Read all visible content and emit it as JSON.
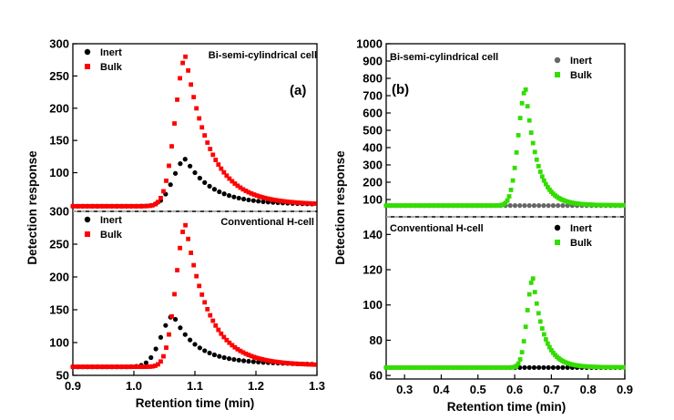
{
  "figure": {
    "ylabel_left": "Detection response",
    "ylabel_right": "Detection response",
    "xlabel_left": "Retention time (min)",
    "xlabel_right": "Retention time (min)"
  },
  "chart_data": [
    {
      "id": "a_top",
      "type": "scatter",
      "panel_label": "(a)",
      "annotation": "Bi-semi-cylindrical cell",
      "xlim": [
        0.9,
        1.3
      ],
      "ylim": [
        40,
        300
      ],
      "yticks": [
        100,
        150,
        200,
        250,
        300
      ],
      "legend": [
        "Inert",
        "Bulk"
      ],
      "series": [
        {
          "name": "Inert",
          "color": "#000000",
          "marker": "circle",
          "baseline": 48,
          "peak_x": 1.085,
          "peak_y": 121,
          "tail": 0.1,
          "sigma_left": 0.02,
          "tau_right": 0.04,
          "x_start": 0.9,
          "x_end": 1.3,
          "step": 0.008
        },
        {
          "name": "Bulk",
          "color": "#ff0000",
          "marker": "square",
          "baseline": 48,
          "peak_x": 1.085,
          "peak_y": 280,
          "tail": 0.03,
          "sigma_left": 0.017,
          "tau_right": 0.04,
          "x_start": 0.9,
          "x_end": 1.3,
          "step": 0.0045
        }
      ]
    },
    {
      "id": "a_bottom",
      "type": "scatter",
      "annotation": "Conventional H-cell",
      "xlim": [
        0.9,
        1.3
      ],
      "ylim": [
        50,
        300
      ],
      "yticks": [
        50,
        100,
        150,
        200,
        250,
        300
      ],
      "xticks": [
        0.9,
        1.0,
        1.1,
        1.2,
        1.3
      ],
      "legend": [
        "Inert",
        "Bulk"
      ],
      "series": [
        {
          "name": "Inert",
          "color": "#000000",
          "marker": "circle",
          "baseline": 63,
          "peak_x": 1.065,
          "peak_y": 141,
          "tail": 0.15,
          "sigma_left": 0.02,
          "tau_right": 0.035,
          "x_start": 0.9,
          "x_end": 1.3,
          "step": 0.008
        },
        {
          "name": "Bulk",
          "color": "#ff0000",
          "marker": "square",
          "baseline": 63,
          "peak_x": 1.085,
          "peak_y": 279,
          "tail": 0.03,
          "sigma_left": 0.016,
          "tau_right": 0.038,
          "x_start": 0.9,
          "x_end": 1.3,
          "step": 0.0045
        }
      ]
    },
    {
      "id": "b_top",
      "type": "scatter",
      "panel_label": "(b)",
      "annotation": "Bi-semi-cylindrical  cell",
      "xlim": [
        0.25,
        0.9
      ],
      "ylim": [
        0,
        1000
      ],
      "yticks": [
        100,
        200,
        300,
        400,
        500,
        600,
        700,
        800,
        900,
        1000
      ],
      "legend": [
        "Inert",
        "Bulk"
      ],
      "series": [
        {
          "name": "Inert",
          "color": "#666666",
          "marker": "circle",
          "baseline": 65,
          "peak_x": 0.63,
          "peak_y": 65,
          "tail": 0,
          "sigma_left": 0.02,
          "tau_right": 0.03,
          "x_start": 0.25,
          "x_end": 0.9,
          "step": 0.013
        },
        {
          "name": "Bulk",
          "color": "#33dd00",
          "marker": "square",
          "baseline": 65,
          "peak_x": 0.63,
          "peak_y": 735,
          "tail": 0.01,
          "sigma_left": 0.02,
          "tau_right": 0.032,
          "x_start": 0.25,
          "x_end": 0.9,
          "step": 0.005
        }
      ]
    },
    {
      "id": "b_bottom",
      "type": "scatter",
      "annotation": "Conventional H-cell",
      "xlim": [
        0.25,
        0.9
      ],
      "ylim": [
        58,
        150
      ],
      "yticks": [
        60,
        80,
        100,
        120,
        140
      ],
      "xticks": [
        0.3,
        0.4,
        0.5,
        0.6,
        0.7,
        0.8,
        0.9
      ],
      "legend": [
        "Inert",
        "Bulk"
      ],
      "series": [
        {
          "name": "Inert",
          "color": "#000000",
          "marker": "circle",
          "baseline": 64.5,
          "peak_x": 0.65,
          "peak_y": 64.5,
          "tail": 0,
          "sigma_left": 0.02,
          "tau_right": 0.03,
          "x_start": 0.25,
          "x_end": 0.9,
          "step": 0.013
        },
        {
          "name": "Bulk",
          "color": "#33dd00",
          "marker": "square",
          "baseline": 64.5,
          "peak_x": 0.65,
          "peak_y": 115,
          "tail": 0.01,
          "sigma_left": 0.016,
          "tau_right": 0.03,
          "x_start": 0.25,
          "x_end": 0.9,
          "step": 0.005
        }
      ]
    }
  ]
}
